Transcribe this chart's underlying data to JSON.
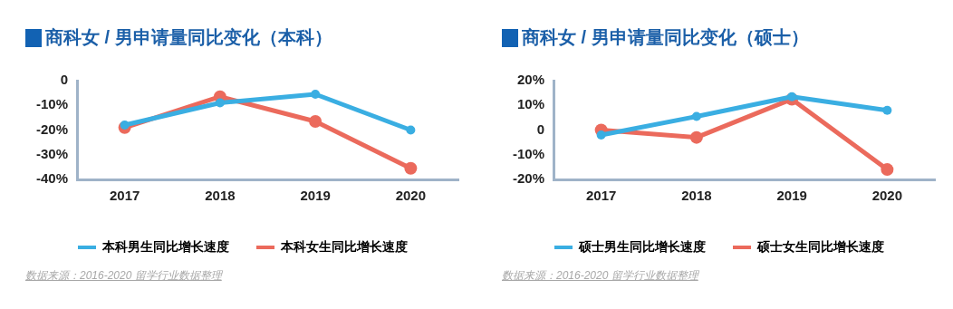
{
  "chart_data": [
    {
      "type": "line",
      "title": "商科女 / 男申请量同比变化（本科）",
      "categories": [
        "2017",
        "2018",
        "2019",
        "2020"
      ],
      "series": [
        {
          "name": "本科男生同比增长速度",
          "color": "#3aaee2",
          "values": [
            -18,
            -9,
            -5.5,
            -20
          ]
        },
        {
          "name": "本科女生同比增长速度",
          "color": "#eb6a5c",
          "values": [
            -19,
            -6.5,
            -16.5,
            -35.5
          ]
        }
      ],
      "ylim": [
        -40,
        0
      ],
      "yticks": [
        {
          "value": -40,
          "label": "-40%"
        },
        {
          "value": -30,
          "label": "-30%"
        },
        {
          "value": -20,
          "label": "-20%"
        },
        {
          "value": -10,
          "label": "-10%"
        },
        0
      ],
      "grid": false,
      "legend": "bottom",
      "marker": "circle",
      "line_style": "solid",
      "annotations": [
        "数据来源：2016-2020 留学行业数据整理"
      ]
    },
    {
      "type": "line",
      "title": "商科女 / 男申请量同比变化（硕士）",
      "categories": [
        "2017",
        "2018",
        "2019",
        "2020"
      ],
      "series": [
        {
          "name": "硕士男生同比增长速度",
          "color": "#3aaee2",
          "values": [
            -2,
            5.5,
            13.5,
            8
          ]
        },
        {
          "name": "硕士女生同比增长速度",
          "color": "#eb6a5c",
          "values": [
            0,
            -3,
            12.5,
            -16
          ]
        }
      ],
      "ylim": [
        -20,
        20
      ],
      "yticks": [
        {
          "value": -20,
          "label": "-20%"
        },
        {
          "value": -10,
          "label": "-10%"
        },
        0,
        {
          "value": 10,
          "label": "10%"
        },
        {
          "value": 20,
          "label": "20%"
        }
      ],
      "grid": false,
      "legend": "bottom",
      "marker": "circle",
      "line_style": "solid",
      "annotations": [
        "数据来源：2016-2020 留学行业数据整理"
      ]
    }
  ]
}
